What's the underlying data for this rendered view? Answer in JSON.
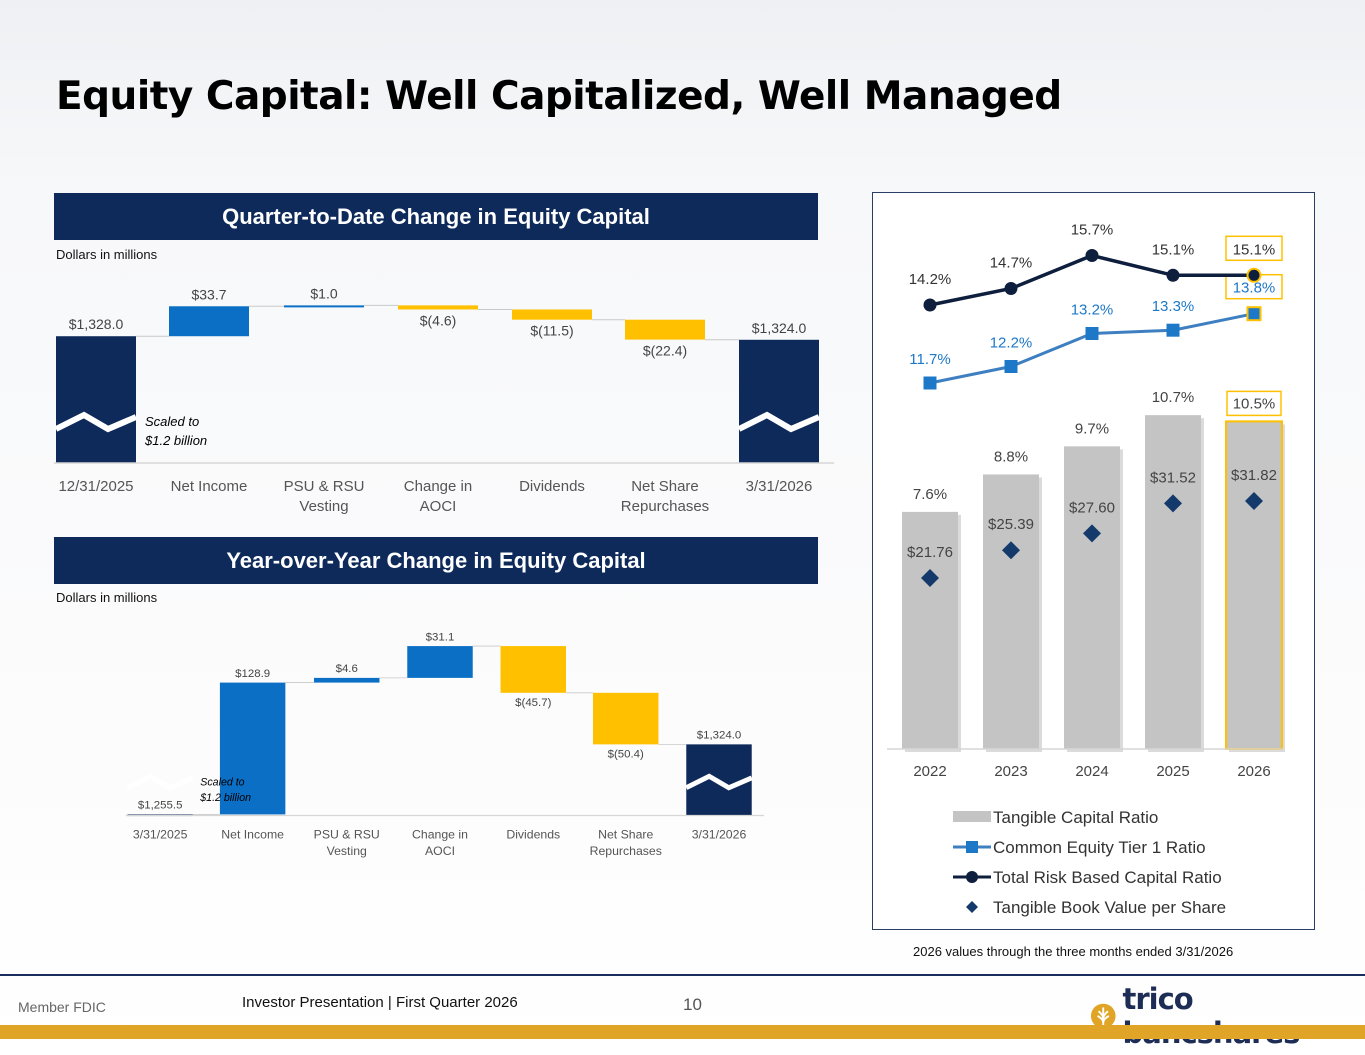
{
  "title": "Equity Capital: Well Capitalized, Well Managed",
  "qtd": {
    "header": "Quarter-to-Date Change in Equity Capital",
    "units": "Dollars in millions"
  },
  "yoy": {
    "header": "Year-over-Year Change in Equity Capital",
    "units": "Dollars in millions"
  },
  "right_note": "2026 values through the three months ended 3/31/2026",
  "footer": {
    "member": "Member FDIC",
    "presentation": "Investor Presentation  |  First Quarter 2026",
    "page": "10",
    "logo_text": "trico bancshares"
  },
  "colors": {
    "navy": "#0e2a5b",
    "blue": "#0b6fc6",
    "gold": "#ffc000",
    "gray": "#c4c4c4",
    "cet1": "#3d7fc0",
    "cet1_label": "#1e78c8",
    "total": "#0e1e3d",
    "tbv": "#143a6b"
  },
  "chart_data": [
    {
      "type": "waterfall",
      "title": "Quarter-to-Date Change in Equity Capital",
      "units": "Dollars in millions",
      "categories": [
        "12/31/2025",
        "Net Income",
        "PSU & RSU Vesting",
        "Change in AOCI",
        "Dividends",
        "Net Share Repurchases",
        "3/31/2026"
      ],
      "values": [
        1328.0,
        33.7,
        1.0,
        -4.6,
        -11.5,
        -22.4,
        1324.0
      ],
      "kinds": [
        "total",
        "increase",
        "increase",
        "decrease",
        "decrease",
        "decrease",
        "total"
      ],
      "labels": [
        "$1,328.0",
        "$33.7",
        "$1.0",
        "$(4.6)",
        "$(11.5)",
        "$(22.4)",
        "$1,324.0"
      ],
      "scale_note": [
        "Scaled to",
        "$1.2 billion"
      ],
      "scale_base": 1200,
      "ylim": [
        1200,
        1380
      ]
    },
    {
      "type": "waterfall",
      "title": "Year-over-Year Change in Equity Capital",
      "units": "Dollars in millions",
      "categories": [
        "3/31/2025",
        "Net Income",
        "PSU & RSU Vesting",
        "Change in AOCI",
        "Dividends",
        "Net Share Repurchases",
        "3/31/2026"
      ],
      "values": [
        1255.5,
        128.9,
        4.6,
        31.1,
        -45.7,
        -50.4,
        1324.0
      ],
      "kinds": [
        "total",
        "increase",
        "increase",
        "increase",
        "decrease",
        "decrease",
        "total"
      ],
      "labels": [
        "$1,255.5",
        "$128.9",
        "$4.6",
        "$31.1",
        "$(45.7)",
        "$(50.4)",
        "$1,324.0"
      ],
      "scale_note": [
        "Scaled to",
        "$1.2 billion"
      ],
      "scale_base": 1200,
      "ylim": [
        1200,
        1440
      ]
    },
    {
      "type": "combo",
      "categories": [
        "2022",
        "2023",
        "2024",
        "2025",
        "2026"
      ],
      "series": [
        {
          "name": "Tangible Capital Ratio",
          "kind": "bar",
          "values": [
            7.6,
            8.8,
            9.7,
            10.7,
            10.5
          ],
          "labels": [
            "7.6%",
            "8.8%",
            "9.7%",
            "10.7%",
            "10.5%"
          ]
        },
        {
          "name": "Common Equity Tier 1 Ratio",
          "kind": "line",
          "values": [
            11.7,
            12.2,
            13.2,
            13.3,
            13.8
          ],
          "labels": [
            "11.7%",
            "12.2%",
            "13.2%",
            "13.3%",
            "13.8%"
          ]
        },
        {
          "name": "Total Risk Based Capital Ratio",
          "kind": "line",
          "values": [
            14.2,
            14.7,
            15.7,
            15.1,
            15.1
          ],
          "labels": [
            "14.2%",
            "14.7%",
            "15.7%",
            "15.1%",
            "15.1%"
          ]
        },
        {
          "name": "Tangible Book Value per Share",
          "kind": "scatter",
          "values": [
            21.76,
            25.39,
            27.6,
            31.52,
            31.82
          ],
          "labels": [
            "$21.76",
            "$25.39",
            "$27.60",
            "$31.52",
            "$31.82"
          ]
        }
      ],
      "highlight_last": true,
      "legend": [
        "Tangible Capital Ratio",
        "Common Equity Tier 1 Ratio",
        "Total Risk Based Capital Ratio",
        "Tangible Book Value per Share"
      ]
    }
  ]
}
